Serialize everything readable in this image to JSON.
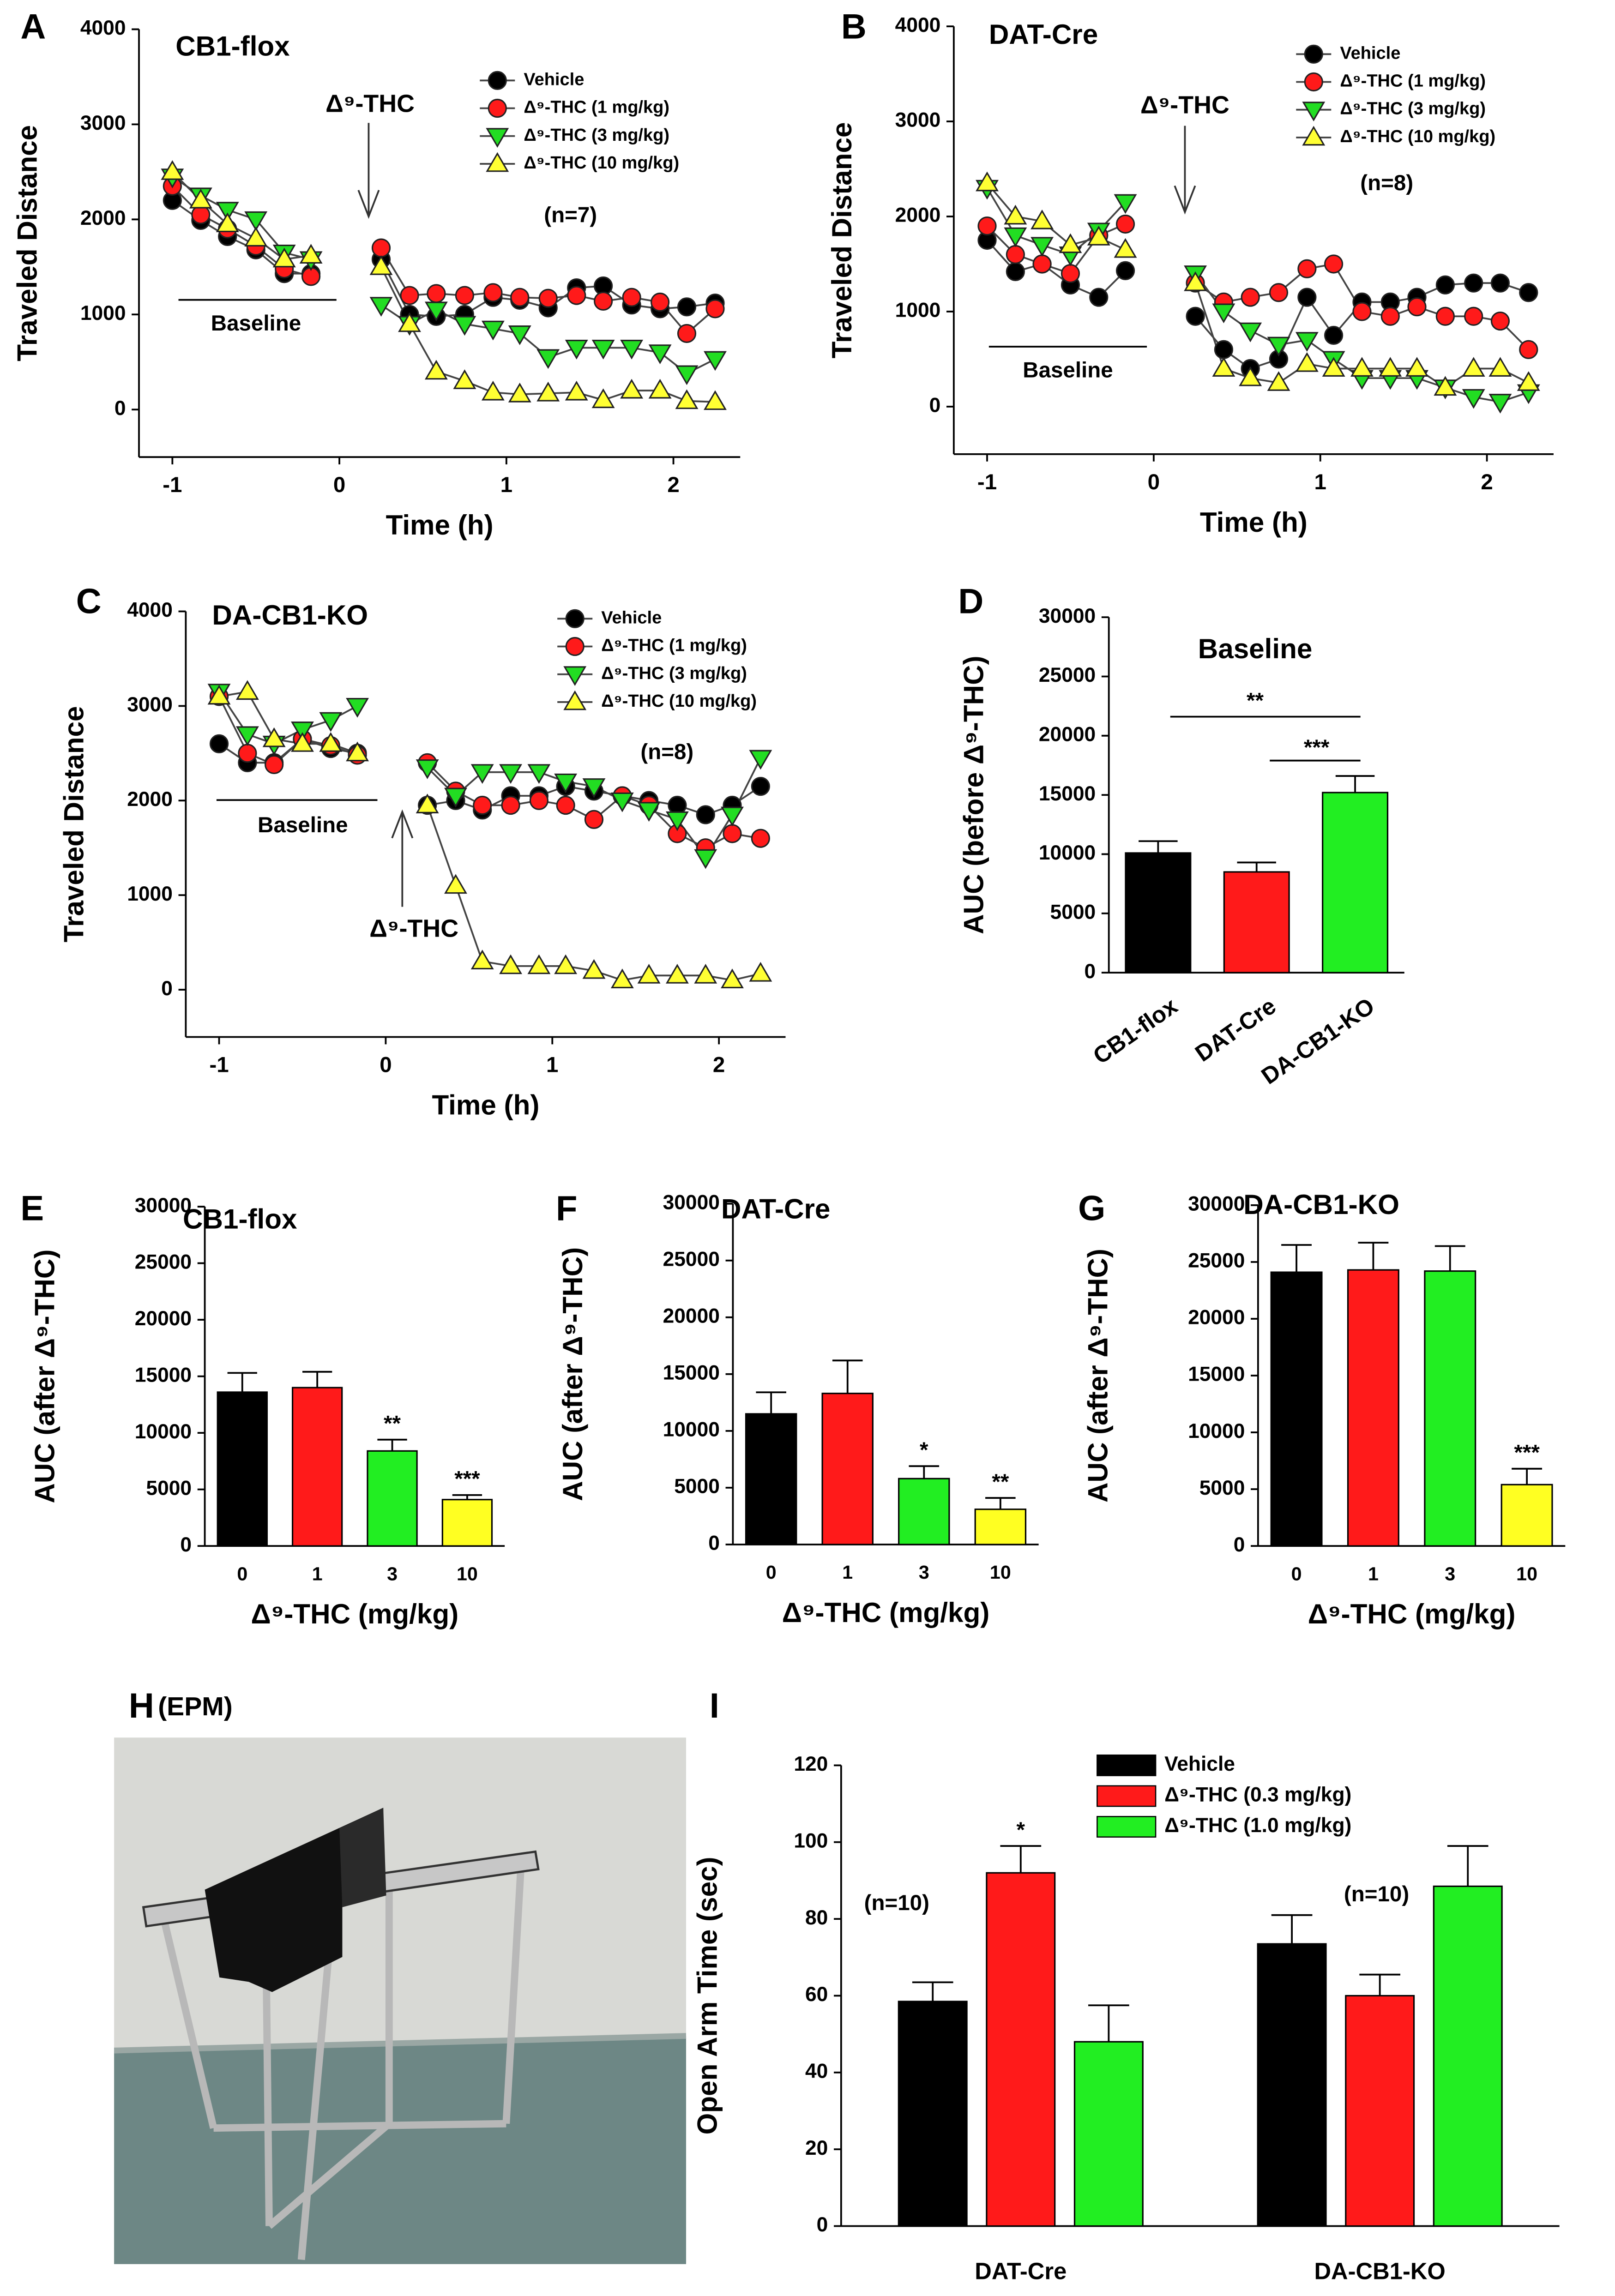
{
  "chart_data": [
    {
      "panel": "A",
      "type": "line",
      "title": "CB1-flox",
      "x_label": "Time (h)",
      "y_label": "Traveled Distance",
      "x": [
        -1,
        -0.83,
        -0.67,
        -0.5,
        -0.33,
        -0.17,
        0.25,
        0.42,
        0.58,
        0.75,
        0.92,
        1.08,
        1.25,
        1.42,
        1.58,
        1.75,
        1.92,
        2.08,
        2.25
      ],
      "xlim": [
        -1.2,
        2.4
      ],
      "xticks": [
        -1,
        0,
        1,
        2
      ],
      "ylim": [
        -500,
        4000
      ],
      "yticks": [
        0,
        1000,
        2000,
        3000,
        4000
      ],
      "annotations": [
        "Δ⁹-THC",
        "Baseline",
        "(n=7)"
      ],
      "series": [
        {
          "name": "Vehicle",
          "color": "#000000",
          "marker": "circle",
          "values": [
            2200,
            1990,
            1820,
            1680,
            1430,
            1430,
            1580,
            1000,
            980,
            1000,
            1180,
            1150,
            1070,
            1280,
            1300,
            1100,
            1060,
            1080,
            1120
          ]
        },
        {
          "name": "Δ⁹-THC (1 mg/kg)",
          "color": "#ff1a1a",
          "marker": "circle",
          "values": [
            2350,
            2050,
            1900,
            1720,
            1480,
            1400,
            1700,
            1200,
            1220,
            1200,
            1230,
            1180,
            1170,
            1200,
            1140,
            1180,
            1130,
            800,
            1060
          ]
        },
        {
          "name": "Δ⁹-THC (3 mg/kg)",
          "color": "#22dd22",
          "marker": "triangle-down",
          "values": [
            2450,
            2250,
            2100,
            2000,
            1650,
            1580,
            1100,
            900,
            1050,
            900,
            850,
            800,
            550,
            650,
            650,
            650,
            600,
            380,
            530
          ]
        },
        {
          "name": "Δ⁹-THC (10 mg/kg)",
          "color": "#ffff33",
          "marker": "triangle-up",
          "values": [
            2500,
            2200,
            1950,
            1800,
            1580,
            1620,
            1500,
            900,
            400,
            300,
            180,
            160,
            170,
            180,
            100,
            200,
            200,
            90,
            80
          ]
        }
      ]
    },
    {
      "panel": "B",
      "type": "line",
      "title": "DAT-Cre",
      "x_label": "Time (h)",
      "y_label": "Traveled Distance",
      "x": [
        -1,
        -0.83,
        -0.67,
        -0.5,
        -0.33,
        -0.17,
        0.25,
        0.42,
        0.58,
        0.75,
        0.92,
        1.08,
        1.25,
        1.42,
        1.58,
        1.75,
        1.92,
        2.08,
        2.25
      ],
      "xlim": [
        -1.2,
        2.4
      ],
      "xticks": [
        -1,
        0,
        1,
        2
      ],
      "ylim": [
        -500,
        4000
      ],
      "yticks": [
        0,
        1000,
        2000,
        3000,
        4000
      ],
      "annotations": [
        "Δ⁹-THC",
        "Baseline",
        "(n=8)"
      ],
      "series": [
        {
          "name": "Vehicle",
          "color": "#000000",
          "marker": "circle",
          "values": [
            1750,
            1420,
            1500,
            1280,
            1150,
            1430,
            950,
            600,
            400,
            500,
            1150,
            750,
            1100,
            1100,
            1150,
            1280,
            1300,
            1300,
            1200
          ]
        },
        {
          "name": "Δ⁹-THC (1 mg/kg)",
          "color": "#ff1a1a",
          "marker": "circle",
          "values": [
            1900,
            1600,
            1500,
            1400,
            1800,
            1920,
            1300,
            1100,
            1150,
            1200,
            1450,
            1500,
            1000,
            950,
            1050,
            950,
            950,
            900,
            600
          ]
        },
        {
          "name": "Δ⁹-THC (3 mg/kg)",
          "color": "#22dd22",
          "marker": "triangle-down",
          "values": [
            2300,
            1800,
            1700,
            1600,
            1850,
            2150,
            1400,
            1000,
            800,
            650,
            700,
            500,
            300,
            300,
            300,
            200,
            100,
            50,
            150
          ]
        },
        {
          "name": "Δ⁹-THC (10 mg/kg)",
          "color": "#ffff33",
          "marker": "triangle-up",
          "values": [
            2350,
            2000,
            1950,
            1700,
            1780,
            1650,
            1300,
            400,
            300,
            250,
            450,
            400,
            400,
            400,
            400,
            200,
            400,
            400,
            250
          ]
        }
      ]
    },
    {
      "panel": "C",
      "type": "line",
      "title": "DA-CB1-KO",
      "x_label": "Time (h)",
      "y_label": "Traveled Distance",
      "x": [
        -1,
        -0.83,
        -0.67,
        -0.5,
        -0.33,
        -0.17,
        0.25,
        0.42,
        0.58,
        0.75,
        0.92,
        1.08,
        1.25,
        1.42,
        1.58,
        1.75,
        1.92,
        2.08,
        2.25
      ],
      "xlim": [
        -1.2,
        2.4
      ],
      "xticks": [
        -1,
        0,
        1,
        2
      ],
      "ylim": [
        -500,
        4000
      ],
      "yticks": [
        0,
        1000,
        2000,
        3000,
        4000
      ],
      "annotations": [
        "Δ⁹-THC",
        "Baseline",
        "(n=8)"
      ],
      "series": [
        {
          "name": "Vehicle",
          "color": "#000000",
          "marker": "circle",
          "values": [
            2600,
            2400,
            2400,
            2650,
            2550,
            2500,
            1950,
            2000,
            1900,
            2050,
            2050,
            2150,
            2100,
            2050,
            2000,
            1950,
            1850,
            1950,
            2150
          ]
        },
        {
          "name": "Δ⁹-THC (1 mg/kg)",
          "color": "#ff1a1a",
          "marker": "circle",
          "values": [
            3100,
            2500,
            2380,
            2650,
            2580,
            2480,
            2400,
            2100,
            1950,
            1950,
            2000,
            1950,
            1800,
            2050,
            1950,
            1650,
            1500,
            1650,
            1600
          ]
        },
        {
          "name": "Δ⁹-THC (3 mg/kg)",
          "color": "#22dd22",
          "marker": "triangle-down",
          "values": [
            3150,
            2700,
            2600,
            2750,
            2850,
            3000,
            2350,
            2050,
            2300,
            2300,
            2300,
            2200,
            2150,
            2000,
            1900,
            1800,
            1400,
            1850,
            2450
          ]
        },
        {
          "name": "Δ⁹-THC (10 mg/kg)",
          "color": "#ffff33",
          "marker": "triangle-up",
          "values": [
            3100,
            3150,
            2650,
            2600,
            2600,
            2500,
            1950,
            1100,
            300,
            250,
            250,
            250,
            200,
            100,
            150,
            150,
            150,
            100,
            170
          ]
        }
      ]
    },
    {
      "panel": "D",
      "type": "bar",
      "title": "Baseline",
      "y_label": "AUC (before Δ⁹-THC)",
      "categories": [
        "CB1-flox",
        "DAT-Cre",
        "DA-CB1-KO"
      ],
      "values": [
        10100,
        8500,
        15200
      ],
      "errors": [
        1000,
        800,
        1400
      ],
      "colors": [
        "#000000",
        "#ff1a1a",
        "#22ee22"
      ],
      "ylim": [
        0,
        30000
      ],
      "yticks": [
        0,
        5000,
        10000,
        15000,
        20000,
        25000,
        30000
      ],
      "annotations": [
        "**",
        "***"
      ]
    },
    {
      "panel": "E",
      "type": "bar",
      "title": "CB1-flox",
      "x_label": "Δ⁹-THC (mg/kg)",
      "y_label": "AUC (after Δ⁹-THC)",
      "categories": [
        "0",
        "1",
        "3",
        "10"
      ],
      "values": [
        13600,
        14000,
        8400,
        4100
      ],
      "errors": [
        1700,
        1400,
        1000,
        400
      ],
      "colors": [
        "#000000",
        "#ff1a1a",
        "#22ee22",
        "#ffff22"
      ],
      "ylim": [
        0,
        30000
      ],
      "yticks": [
        0,
        5000,
        10000,
        15000,
        20000,
        25000,
        30000
      ],
      "annotations": [
        "**",
        "***"
      ]
    },
    {
      "panel": "F",
      "type": "bar",
      "title": "DAT-Cre",
      "x_label": "Δ⁹-THC (mg/kg)",
      "y_label": "AUC (after Δ⁹-THC)",
      "categories": [
        "0",
        "1",
        "3",
        "10"
      ],
      "values": [
        11500,
        13300,
        5800,
        3100
      ],
      "errors": [
        1900,
        2900,
        1100,
        1000
      ],
      "colors": [
        "#000000",
        "#ff1a1a",
        "#22ee22",
        "#ffff22"
      ],
      "ylim": [
        0,
        30000
      ],
      "yticks": [
        0,
        5000,
        10000,
        15000,
        20000,
        25000,
        30000
      ],
      "annotations": [
        "*",
        "**"
      ]
    },
    {
      "panel": "G",
      "type": "bar",
      "title": "DA-CB1-KO",
      "x_label": "Δ⁹-THC (mg/kg)",
      "y_label": "AUC (after Δ⁹-THC)",
      "categories": [
        "0",
        "1",
        "3",
        "10"
      ],
      "values": [
        24100,
        24300,
        24200,
        5400
      ],
      "errors": [
        2400,
        2400,
        2200,
        1400
      ],
      "colors": [
        "#000000",
        "#ff1a1a",
        "#22ee22",
        "#ffff22"
      ],
      "ylim": [
        0,
        30000
      ],
      "yticks": [
        0,
        5000,
        10000,
        15000,
        20000,
        25000,
        30000
      ],
      "annotations": [
        "***"
      ]
    },
    {
      "panel": "I",
      "type": "bar",
      "y_label": "Open Arm Time (sec)",
      "categories": [
        "DAT-Cre",
        "DA-CB1-KO"
      ],
      "ylim": [
        0,
        120
      ],
      "yticks": [
        0,
        20,
        40,
        60,
        80,
        100,
        120
      ],
      "series": [
        {
          "name": "Vehicle",
          "color": "#000000",
          "values": [
            58.5,
            73.5
          ],
          "errors": [
            5,
            7.5
          ]
        },
        {
          "name": "Δ⁹-THC (0.3 mg/kg)",
          "color": "#ff1a1a",
          "values": [
            92,
            60
          ],
          "errors": [
            7,
            5.5
          ]
        },
        {
          "name": "Δ⁹-THC (1.0 mg/kg)",
          "color": "#22ee22",
          "values": [
            48,
            88.5
          ],
          "errors": [
            9.5,
            10.5
          ]
        }
      ],
      "annotations": [
        "(n=10)",
        "(n=10)",
        "*"
      ]
    }
  ],
  "photo": {
    "panel": "H",
    "label": "(EPM)"
  }
}
